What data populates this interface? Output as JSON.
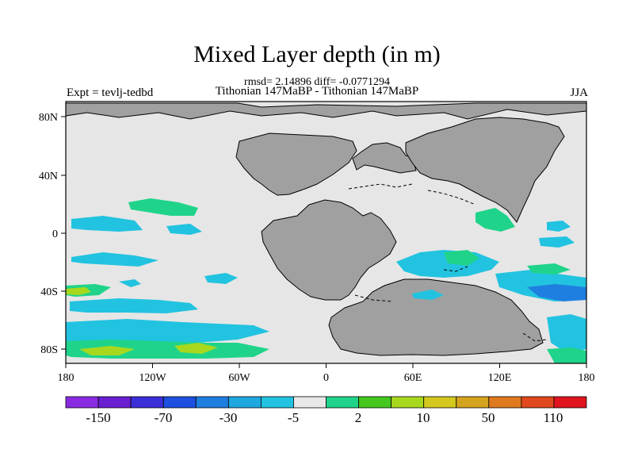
{
  "title": "Mixed Layer depth (in m)",
  "stats": "rmsd= 2.14896 diff= -0.0771294",
  "subtitle": "Tithonian 147MaBP - Tithonian 147MaBP",
  "left_label": "Expt = tevlj-tedbd",
  "right_label": "JJA",
  "map": {
    "ocean_color": "#e6e6e6",
    "land_color": "#a0a0a0",
    "lon_labels": [
      "180",
      "120W",
      "60W",
      "0",
      "60E",
      "120E",
      "180"
    ],
    "lat_labels": [
      "80N",
      "40N",
      "0",
      "40S",
      "80S"
    ]
  },
  "colorbar": {
    "colors": [
      "#8a2be2",
      "#6a1fd0",
      "#3b2fd8",
      "#1f4fe0",
      "#1f7fe0",
      "#1fa8e0",
      "#22c3e0",
      "#e8e8e8",
      "#1fd48a",
      "#44c81e",
      "#a8d81e",
      "#d4c81e",
      "#d4a41e",
      "#e07a1e",
      "#e0481e",
      "#e0141e"
    ],
    "labels": [
      "-150",
      "-70",
      "-30",
      "-5",
      "2",
      "10",
      "50",
      "110"
    ]
  }
}
